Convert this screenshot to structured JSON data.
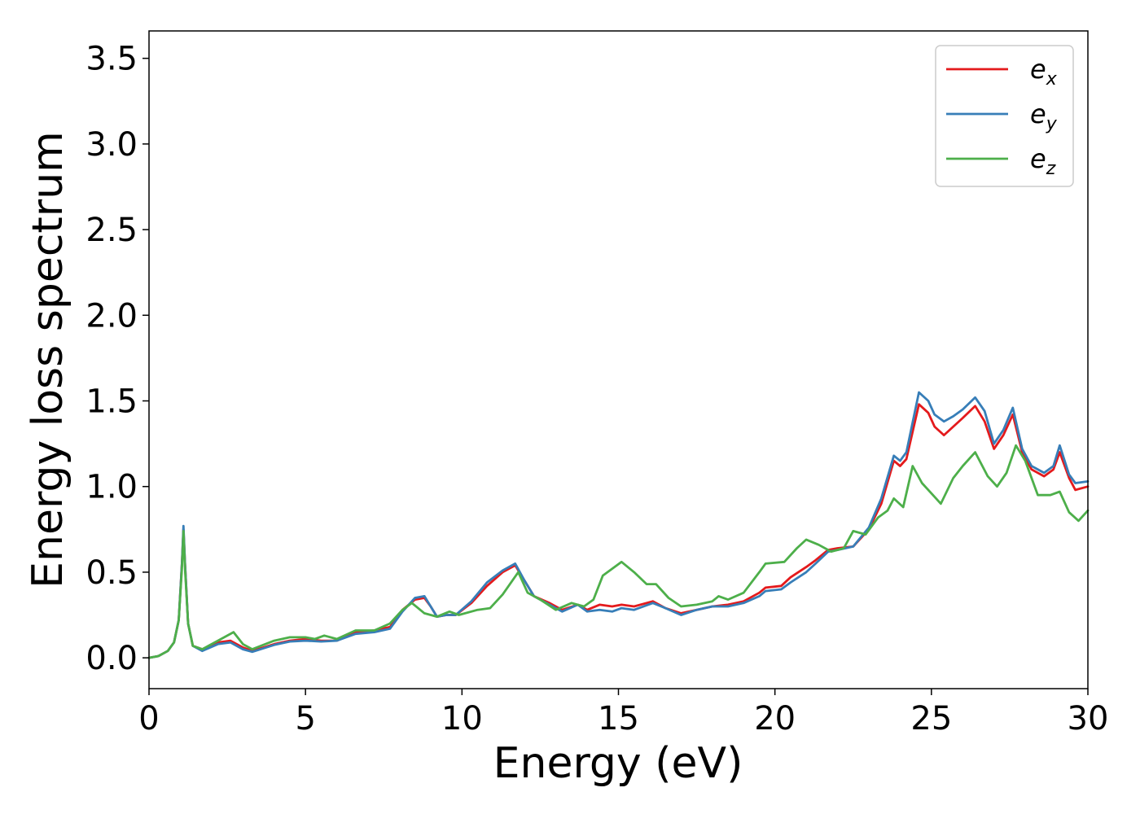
{
  "chart_data": {
    "type": "line",
    "title": "",
    "xlabel": "Energy (eV)",
    "ylabel": "Energy loss spectrum",
    "xlim": [
      0,
      30
    ],
    "ylim": [
      -0.18,
      3.66
    ],
    "xticks": [
      "0",
      "5",
      "10",
      "15",
      "20",
      "25",
      "30"
    ],
    "yticks": [
      "0.0",
      "0.5",
      "1.0",
      "1.5",
      "2.0",
      "2.5",
      "3.0",
      "3.5"
    ],
    "grid": false,
    "legend": {
      "placement": "top-right",
      "entries": [
        {
          "base": "e",
          "sub": "x",
          "color": "#e41a1c"
        },
        {
          "base": "e",
          "sub": "y",
          "color": "#377eb8"
        },
        {
          "base": "e",
          "sub": "z",
          "color": "#4daf4a"
        }
      ]
    },
    "series": [
      {
        "name": "e_x",
        "color": "#e41a1c",
        "points": [
          [
            0,
            0
          ],
          [
            0.3,
            0.01
          ],
          [
            0.6,
            0.04
          ],
          [
            0.8,
            0.09
          ],
          [
            0.95,
            0.22
          ],
          [
            1.05,
            0.55
          ],
          [
            1.1,
            0.75
          ],
          [
            1.15,
            0.55
          ],
          [
            1.25,
            0.2
          ],
          [
            1.4,
            0.07
          ],
          [
            1.7,
            0.05
          ],
          [
            2.2,
            0.09
          ],
          [
            2.6,
            0.1
          ],
          [
            3.0,
            0.06
          ],
          [
            3.3,
            0.04
          ],
          [
            4.0,
            0.08
          ],
          [
            4.5,
            0.1
          ],
          [
            5.0,
            0.11
          ],
          [
            5.5,
            0.1
          ],
          [
            6.0,
            0.1
          ],
          [
            6.6,
            0.15
          ],
          [
            7.2,
            0.16
          ],
          [
            7.7,
            0.18
          ],
          [
            8.1,
            0.28
          ],
          [
            8.5,
            0.34
          ],
          [
            8.8,
            0.35
          ],
          [
            9.0,
            0.3
          ],
          [
            9.2,
            0.24
          ],
          [
            9.5,
            0.25
          ],
          [
            9.8,
            0.25
          ],
          [
            10.3,
            0.32
          ],
          [
            10.8,
            0.42
          ],
          [
            11.3,
            0.5
          ],
          [
            11.7,
            0.54
          ],
          [
            12.0,
            0.45
          ],
          [
            12.3,
            0.36
          ],
          [
            12.8,
            0.32
          ],
          [
            13.2,
            0.28
          ],
          [
            13.7,
            0.31
          ],
          [
            14.0,
            0.28
          ],
          [
            14.4,
            0.31
          ],
          [
            14.8,
            0.3
          ],
          [
            15.1,
            0.31
          ],
          [
            15.5,
            0.3
          ],
          [
            16.1,
            0.33
          ],
          [
            16.5,
            0.29
          ],
          [
            17.0,
            0.26
          ],
          [
            17.5,
            0.28
          ],
          [
            18.0,
            0.3
          ],
          [
            18.5,
            0.31
          ],
          [
            19.0,
            0.33
          ],
          [
            19.5,
            0.38
          ],
          [
            19.7,
            0.41
          ],
          [
            20.2,
            0.42
          ],
          [
            20.5,
            0.47
          ],
          [
            21.0,
            0.53
          ],
          [
            21.3,
            0.57
          ],
          [
            21.7,
            0.63
          ],
          [
            22.0,
            0.64
          ],
          [
            22.5,
            0.65
          ],
          [
            23.0,
            0.75
          ],
          [
            23.4,
            0.9
          ],
          [
            23.8,
            1.15
          ],
          [
            24.0,
            1.12
          ],
          [
            24.2,
            1.16
          ],
          [
            24.6,
            1.48
          ],
          [
            24.9,
            1.43
          ],
          [
            25.1,
            1.35
          ],
          [
            25.4,
            1.3
          ],
          [
            25.7,
            1.35
          ],
          [
            26.0,
            1.4
          ],
          [
            26.4,
            1.47
          ],
          [
            26.7,
            1.38
          ],
          [
            27.0,
            1.22
          ],
          [
            27.3,
            1.3
          ],
          [
            27.6,
            1.42
          ],
          [
            27.9,
            1.2
          ],
          [
            28.2,
            1.1
          ],
          [
            28.6,
            1.06
          ],
          [
            28.9,
            1.1
          ],
          [
            29.1,
            1.2
          ],
          [
            29.4,
            1.05
          ],
          [
            29.6,
            0.98
          ],
          [
            30.0,
            1.0
          ]
        ]
      },
      {
        "name": "e_y",
        "color": "#377eb8",
        "points": [
          [
            0,
            0
          ],
          [
            0.3,
            0.01
          ],
          [
            0.6,
            0.04
          ],
          [
            0.8,
            0.09
          ],
          [
            0.95,
            0.22
          ],
          [
            1.05,
            0.55
          ],
          [
            1.1,
            0.77
          ],
          [
            1.15,
            0.55
          ],
          [
            1.25,
            0.2
          ],
          [
            1.4,
            0.07
          ],
          [
            1.7,
            0.04
          ],
          [
            2.2,
            0.08
          ],
          [
            2.6,
            0.09
          ],
          [
            3.0,
            0.05
          ],
          [
            3.3,
            0.035
          ],
          [
            4.0,
            0.075
          ],
          [
            4.5,
            0.095
          ],
          [
            5.0,
            0.1
          ],
          [
            5.5,
            0.095
          ],
          [
            6.0,
            0.1
          ],
          [
            6.6,
            0.14
          ],
          [
            7.2,
            0.15
          ],
          [
            7.7,
            0.17
          ],
          [
            8.1,
            0.27
          ],
          [
            8.5,
            0.35
          ],
          [
            8.8,
            0.36
          ],
          [
            9.0,
            0.3
          ],
          [
            9.2,
            0.24
          ],
          [
            9.5,
            0.25
          ],
          [
            9.8,
            0.25
          ],
          [
            10.3,
            0.33
          ],
          [
            10.8,
            0.44
          ],
          [
            11.3,
            0.51
          ],
          [
            11.7,
            0.55
          ],
          [
            12.0,
            0.45
          ],
          [
            12.3,
            0.36
          ],
          [
            12.8,
            0.31
          ],
          [
            13.2,
            0.27
          ],
          [
            13.7,
            0.31
          ],
          [
            14.0,
            0.27
          ],
          [
            14.4,
            0.28
          ],
          [
            14.8,
            0.27
          ],
          [
            15.1,
            0.29
          ],
          [
            15.5,
            0.28
          ],
          [
            16.1,
            0.32
          ],
          [
            16.5,
            0.29
          ],
          [
            17.0,
            0.25
          ],
          [
            17.5,
            0.28
          ],
          [
            18.0,
            0.3
          ],
          [
            18.5,
            0.3
          ],
          [
            19.0,
            0.32
          ],
          [
            19.5,
            0.36
          ],
          [
            19.7,
            0.39
          ],
          [
            20.2,
            0.4
          ],
          [
            20.5,
            0.44
          ],
          [
            21.0,
            0.5
          ],
          [
            21.3,
            0.55
          ],
          [
            21.7,
            0.62
          ],
          [
            22.0,
            0.63
          ],
          [
            22.5,
            0.65
          ],
          [
            23.0,
            0.76
          ],
          [
            23.4,
            0.93
          ],
          [
            23.8,
            1.18
          ],
          [
            24.0,
            1.15
          ],
          [
            24.2,
            1.2
          ],
          [
            24.6,
            1.55
          ],
          [
            24.9,
            1.5
          ],
          [
            25.1,
            1.42
          ],
          [
            25.4,
            1.38
          ],
          [
            25.7,
            1.41
          ],
          [
            26.0,
            1.45
          ],
          [
            26.4,
            1.52
          ],
          [
            26.7,
            1.44
          ],
          [
            27.0,
            1.25
          ],
          [
            27.3,
            1.33
          ],
          [
            27.6,
            1.46
          ],
          [
            27.9,
            1.22
          ],
          [
            28.2,
            1.12
          ],
          [
            28.6,
            1.08
          ],
          [
            28.9,
            1.12
          ],
          [
            29.1,
            1.24
          ],
          [
            29.4,
            1.07
          ],
          [
            29.6,
            1.02
          ],
          [
            30.0,
            1.03
          ]
        ]
      },
      {
        "name": "e_z",
        "color": "#4daf4a",
        "points": [
          [
            0,
            0
          ],
          [
            0.3,
            0.01
          ],
          [
            0.6,
            0.04
          ],
          [
            0.8,
            0.09
          ],
          [
            0.95,
            0.22
          ],
          [
            1.05,
            0.52
          ],
          [
            1.1,
            0.74
          ],
          [
            1.15,
            0.52
          ],
          [
            1.25,
            0.2
          ],
          [
            1.4,
            0.07
          ],
          [
            1.7,
            0.05
          ],
          [
            2.2,
            0.1
          ],
          [
            2.7,
            0.15
          ],
          [
            3.0,
            0.08
          ],
          [
            3.3,
            0.05
          ],
          [
            4.0,
            0.1
          ],
          [
            4.5,
            0.12
          ],
          [
            5.0,
            0.12
          ],
          [
            5.3,
            0.11
          ],
          [
            5.6,
            0.13
          ],
          [
            6.0,
            0.11
          ],
          [
            6.6,
            0.16
          ],
          [
            7.2,
            0.16
          ],
          [
            7.7,
            0.2
          ],
          [
            8.1,
            0.28
          ],
          [
            8.4,
            0.32
          ],
          [
            8.8,
            0.26
          ],
          [
            9.2,
            0.24
          ],
          [
            9.6,
            0.27
          ],
          [
            9.9,
            0.25
          ],
          [
            10.5,
            0.28
          ],
          [
            10.9,
            0.29
          ],
          [
            11.3,
            0.37
          ],
          [
            11.8,
            0.5
          ],
          [
            12.1,
            0.38
          ],
          [
            12.5,
            0.34
          ],
          [
            13.0,
            0.28
          ],
          [
            13.5,
            0.32
          ],
          [
            13.9,
            0.3
          ],
          [
            14.2,
            0.34
          ],
          [
            14.5,
            0.48
          ],
          [
            15.1,
            0.56
          ],
          [
            15.5,
            0.5
          ],
          [
            15.9,
            0.43
          ],
          [
            16.2,
            0.43
          ],
          [
            16.6,
            0.35
          ],
          [
            17.0,
            0.3
          ],
          [
            17.5,
            0.31
          ],
          [
            18.0,
            0.33
          ],
          [
            18.2,
            0.36
          ],
          [
            18.5,
            0.34
          ],
          [
            19.0,
            0.38
          ],
          [
            19.5,
            0.5
          ],
          [
            19.7,
            0.55
          ],
          [
            20.3,
            0.56
          ],
          [
            20.7,
            0.64
          ],
          [
            21.0,
            0.69
          ],
          [
            21.4,
            0.66
          ],
          [
            21.8,
            0.62
          ],
          [
            22.2,
            0.64
          ],
          [
            22.5,
            0.74
          ],
          [
            22.9,
            0.72
          ],
          [
            23.3,
            0.82
          ],
          [
            23.6,
            0.86
          ],
          [
            23.8,
            0.93
          ],
          [
            24.1,
            0.88
          ],
          [
            24.4,
            1.12
          ],
          [
            24.7,
            1.02
          ],
          [
            25.0,
            0.96
          ],
          [
            25.3,
            0.9
          ],
          [
            25.7,
            1.05
          ],
          [
            26.0,
            1.12
          ],
          [
            26.4,
            1.2
          ],
          [
            26.8,
            1.06
          ],
          [
            27.1,
            1.0
          ],
          [
            27.4,
            1.08
          ],
          [
            27.7,
            1.24
          ],
          [
            28.0,
            1.15
          ],
          [
            28.4,
            0.95
          ],
          [
            28.8,
            0.95
          ],
          [
            29.1,
            0.97
          ],
          [
            29.4,
            0.85
          ],
          [
            29.7,
            0.8
          ],
          [
            30.0,
            0.86
          ]
        ]
      }
    ]
  }
}
